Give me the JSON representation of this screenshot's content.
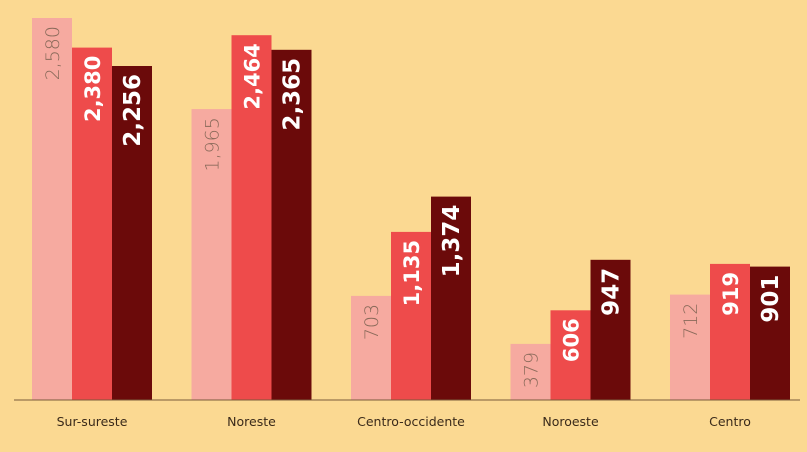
{
  "chart_data": {
    "type": "bar",
    "categories": [
      "Sur-sureste",
      "Noreste",
      "Centro-occidente",
      "Noroeste",
      "Centro"
    ],
    "series": [
      {
        "values": [
          2580,
          1965,
          703,
          379,
          712
        ],
        "labels": [
          "2,580",
          "1,965",
          "703",
          "379",
          "712"
        ]
      },
      {
        "values": [
          2380,
          2464,
          1135,
          606,
          919
        ],
        "labels": [
          "2,380",
          "2,464",
          "1,135",
          "606",
          "919"
        ]
      },
      {
        "values": [
          2256,
          2365,
          1374,
          947,
          901
        ],
        "labels": [
          "2,256",
          "2,365",
          "1,374",
          "947",
          "901"
        ]
      }
    ],
    "ylim": [
      0,
      2580
    ],
    "grid": false,
    "colors": {
      "background": "#fbd992",
      "series": [
        "#f6aaa0",
        "#ee4b4b",
        "#6b0a0a"
      ],
      "label_light": "#8a6a5a",
      "label_on_mid": "#ffffff",
      "label_on_dark": "#ffffff",
      "label_outside": "#111111",
      "axis": "#7a5a3a"
    }
  }
}
